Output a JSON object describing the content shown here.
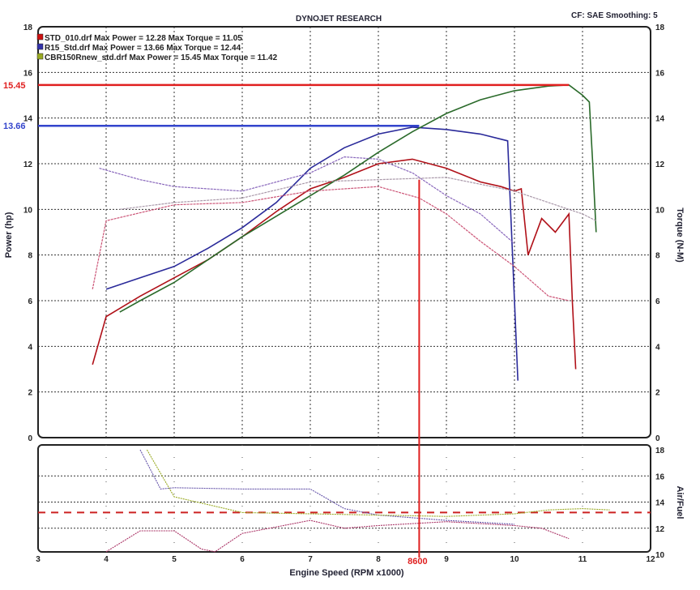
{
  "header": {
    "title": "DYNOJET RESEARCH",
    "settings": "CF: SAE  Smoothing: 5"
  },
  "chart_data": [
    {
      "type": "line",
      "title": "DYNOJET RESEARCH",
      "xlabel": "Engine Speed (RPM x1000)",
      "ylabel": "Power (hp)",
      "y2label": "Torque (N-M)",
      "xlim": [
        3,
        12
      ],
      "ylim": [
        0,
        18
      ],
      "y2lim": [
        0,
        18
      ],
      "xticks": [
        "3",
        "4",
        "5",
        "6",
        "7",
        "8",
        "9",
        "10",
        "11",
        "12"
      ],
      "yticks": [
        "0",
        "2",
        "4",
        "6",
        "8",
        "10",
        "12",
        "14",
        "16",
        "18"
      ],
      "grid": true,
      "legend_position": "top-left",
      "legend": [
        {
          "text": "STD_010.drf Max Power = 12.28     Max Torque = 11.05",
          "color": "#cc1111"
        },
        {
          "text": "R15_Std.drf Max Power = 13.66     Max Torque = 12.44",
          "color": "#3333aa"
        },
        {
          "text": "CBR150Rnew_std.drf Max Power = 15.45     Max Torque = 11.42",
          "color": "#99aa22"
        }
      ],
      "series": [
        {
          "name": "STD_010 Power",
          "color": "#b01018",
          "x": [
            3.8,
            4.0,
            4.5,
            5.0,
            5.5,
            6.0,
            6.5,
            7.0,
            7.5,
            8.0,
            8.5,
            9.0,
            9.5,
            9.8,
            10.0,
            10.1,
            10.2,
            10.4,
            10.6,
            10.8,
            10.85,
            10.9
          ],
          "y": [
            3.2,
            5.3,
            6.2,
            7.0,
            7.8,
            8.8,
            9.9,
            10.9,
            11.4,
            12.0,
            12.2,
            11.8,
            11.2,
            11.0,
            10.8,
            10.9,
            8.0,
            9.6,
            9.0,
            9.8,
            6,
            3
          ]
        },
        {
          "name": "R15 Power",
          "color": "#2a2a9a",
          "x": [
            4.0,
            4.5,
            5.0,
            5.5,
            6.0,
            6.5,
            7.0,
            7.5,
            8.0,
            8.5,
            9.0,
            9.5,
            9.9,
            10.0,
            10.05
          ],
          "y": [
            6.5,
            7.0,
            7.5,
            8.3,
            9.2,
            10.3,
            11.8,
            12.7,
            13.3,
            13.6,
            13.5,
            13.3,
            13.0,
            6.0,
            2.5
          ]
        },
        {
          "name": "CBR150R Power",
          "color": "#2a6a2a",
          "x": [
            4.2,
            4.5,
            5.0,
            5.5,
            6.0,
            6.5,
            7.0,
            7.5,
            8.0,
            8.5,
            9.0,
            9.5,
            10.0,
            10.5,
            10.8,
            11.0,
            11.1,
            11.15,
            11.2
          ],
          "y": [
            5.5,
            6.0,
            6.8,
            7.8,
            8.8,
            9.7,
            10.6,
            11.5,
            12.5,
            13.4,
            14.2,
            14.8,
            15.2,
            15.4,
            15.45,
            15.0,
            14.7,
            12,
            9
          ]
        },
        {
          "name": "STD_010 Torque",
          "color": "#cc5577",
          "x": [
            3.8,
            4.0,
            5.0,
            6.0,
            7.0,
            8.0,
            8.6,
            9.0,
            9.5,
            10.0,
            10.5,
            10.8
          ],
          "y": [
            6.5,
            9.5,
            10.2,
            10.3,
            10.8,
            11.0,
            10.5,
            9.8,
            8.6,
            7.5,
            6.2,
            6.0
          ]
        },
        {
          "name": "R15 Torque",
          "color": "#8866bb",
          "x": [
            3.9,
            4.5,
            5.0,
            6.0,
            7.0,
            7.5,
            8.0,
            8.5,
            9.0,
            9.5,
            10.0
          ],
          "y": [
            11.8,
            11.3,
            11.0,
            10.8,
            11.6,
            12.3,
            12.2,
            11.6,
            10.6,
            9.8,
            8.5
          ]
        },
        {
          "name": "CBR150R Torque",
          "color": "#aa99aa",
          "x": [
            4.2,
            5.0,
            6.0,
            7.0,
            8.0,
            9.0,
            10.0,
            11.0,
            11.2
          ],
          "y": [
            10.0,
            10.3,
            10.5,
            11.2,
            11.3,
            11.4,
            10.8,
            9.8,
            9.5
          ]
        }
      ],
      "annotations": [
        {
          "label": "15.45",
          "type": "hline",
          "value": 15.45,
          "color": "#e02020"
        },
        {
          "label": "13.66",
          "type": "hline",
          "value": 13.66,
          "color": "#3344cc"
        },
        {
          "label": "8600",
          "type": "vline",
          "value": 8.6,
          "color": "#e02020"
        }
      ]
    },
    {
      "type": "line",
      "ylabel": "Air/Fuel",
      "xlim": [
        3,
        12
      ],
      "ylim": [
        10,
        18
      ],
      "yticks": [
        "10",
        "12",
        "14",
        "16",
        "18"
      ],
      "reference_line": {
        "value": 13.2,
        "color": "#cc2222"
      },
      "series": [
        {
          "name": "R15 AFR",
          "color": "#6655aa",
          "x": [
            4.5,
            4.8,
            5.0,
            6.0,
            7.0,
            7.5,
            8.0,
            9.0,
            10.0
          ],
          "y": [
            18,
            15.0,
            15.1,
            15.0,
            15.0,
            13.5,
            13.0,
            12.6,
            12.3
          ]
        },
        {
          "name": "STD_010 AFR",
          "color": "#aa3366",
          "x": [
            4.0,
            4.5,
            5.0,
            5.4,
            5.6,
            6.0,
            7.0,
            7.5,
            8.0,
            9.0,
            10.0,
            10.4,
            10.8
          ],
          "y": [
            10.2,
            11.8,
            11.8,
            10.4,
            10.2,
            11.6,
            12.6,
            12.0,
            12.2,
            12.5,
            12.2,
            12.0,
            11.2
          ]
        },
        {
          "name": "CBR150R AFR",
          "color": "#99aa22",
          "x": [
            4.6,
            5.0,
            6.0,
            7.0,
            8.0,
            9.0,
            10.0,
            10.5,
            11.0,
            11.4
          ],
          "y": [
            18,
            14.4,
            13.2,
            13.1,
            13.0,
            12.9,
            13.1,
            13.4,
            13.5,
            13.4
          ]
        }
      ]
    }
  ]
}
